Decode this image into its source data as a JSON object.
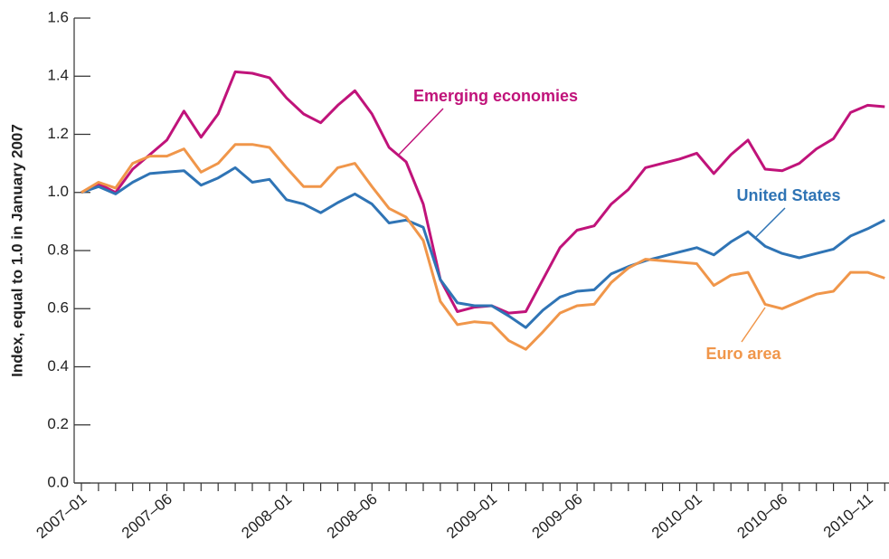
{
  "chart_data": {
    "type": "line",
    "y_label": "Index, equal to 1.0 in January 2007",
    "categories": [
      "2007–01",
      null,
      null,
      null,
      null,
      "2007–06",
      null,
      null,
      null,
      null,
      null,
      null,
      "2008–01",
      null,
      null,
      null,
      null,
      "2008–06",
      null,
      null,
      null,
      null,
      null,
      null,
      "2009–01",
      null,
      null,
      null,
      null,
      "2009–06",
      null,
      null,
      null,
      null,
      null,
      null,
      "2010–01",
      null,
      null,
      null,
      null,
      "2010–06",
      null,
      null,
      null,
      null,
      "2010–11",
      null
    ],
    "series": [
      {
        "name": "Emerging economies",
        "color": "#c0137a",
        "values": [
          1.0,
          1.03,
          1.0,
          1.08,
          1.13,
          1.18,
          1.28,
          1.19,
          1.27,
          1.415,
          1.41,
          1.395,
          1.325,
          1.27,
          1.24,
          1.3,
          1.35,
          1.27,
          1.155,
          1.105,
          0.96,
          0.7,
          0.59,
          0.605,
          0.61,
          0.585,
          0.59,
          0.7,
          0.81,
          0.87,
          0.885,
          0.96,
          1.01,
          1.085,
          1.1,
          1.115,
          1.135,
          1.065,
          1.13,
          1.18,
          1.08,
          1.075,
          1.1,
          1.15,
          1.185,
          1.275,
          1.3,
          1.295
        ]
      },
      {
        "name": "United States",
        "color": "#2f74b5",
        "values": [
          1.0,
          1.02,
          0.995,
          1.035,
          1.065,
          1.07,
          1.075,
          1.025,
          1.05,
          1.085,
          1.035,
          1.045,
          0.975,
          0.96,
          0.93,
          0.965,
          0.995,
          0.96,
          0.895,
          0.905,
          0.88,
          0.7,
          0.62,
          0.61,
          0.61,
          0.575,
          0.535,
          0.595,
          0.64,
          0.66,
          0.665,
          0.72,
          0.745,
          0.765,
          0.78,
          0.795,
          0.81,
          0.785,
          0.83,
          0.865,
          0.815,
          0.79,
          0.775,
          0.79,
          0.805,
          0.85,
          0.875,
          0.905
        ]
      },
      {
        "name": "Euro area",
        "color": "#f0964a",
        "values": [
          1.0,
          1.035,
          1.015,
          1.1,
          1.125,
          1.125,
          1.15,
          1.07,
          1.1,
          1.165,
          1.165,
          1.155,
          1.085,
          1.02,
          1.02,
          1.085,
          1.1,
          1.02,
          0.945,
          0.915,
          0.835,
          0.625,
          0.545,
          0.555,
          0.55,
          0.49,
          0.46,
          0.52,
          0.585,
          0.61,
          0.615,
          0.69,
          0.74,
          0.77,
          0.765,
          0.76,
          0.755,
          0.68,
          0.715,
          0.725,
          0.615,
          0.6,
          0.625,
          0.65,
          0.66,
          0.725,
          0.725,
          0.705
        ]
      }
    ],
    "ylim": [
      0,
      1.6
    ],
    "yticks": [
      {
        "value": 0,
        "label": "0.0"
      },
      0.2,
      0.4,
      0.6,
      0.8,
      {
        "value": 1,
        "label": "1.0"
      },
      1.2,
      1.4,
      1.6
    ]
  }
}
